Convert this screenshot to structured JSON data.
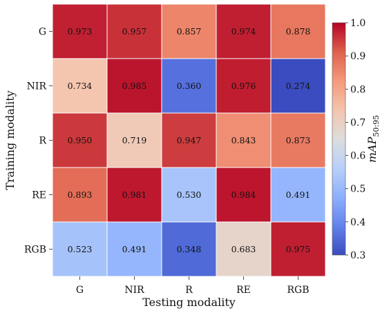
{
  "chart_data": {
    "type": "heatmap",
    "title": "",
    "xlabel": "Testing modality",
    "ylabel": "Training modality",
    "x_categories": [
      "G",
      "NIR",
      "R",
      "RE",
      "RGB"
    ],
    "y_categories": [
      "G",
      "NIR",
      "R",
      "RE",
      "RGB"
    ],
    "values": [
      [
        0.973,
        0.957,
        0.857,
        0.974,
        0.878
      ],
      [
        0.734,
        0.985,
        0.36,
        0.976,
        0.274
      ],
      [
        0.95,
        0.719,
        0.947,
        0.843,
        0.873
      ],
      [
        0.893,
        0.981,
        0.53,
        0.984,
        0.491
      ],
      [
        0.523,
        0.491,
        0.348,
        0.683,
        0.975
      ]
    ],
    "value_labels": [
      [
        "0.973",
        "0.957",
        "0.857",
        "0.974",
        "0.878"
      ],
      [
        "0.734",
        "0.985",
        "0.360",
        "0.976",
        "0.274"
      ],
      [
        "0.950",
        "0.719",
        "0.947",
        "0.843",
        "0.873"
      ],
      [
        "0.893",
        "0.981",
        "0.530",
        "0.984",
        "0.491"
      ],
      [
        "0.523",
        "0.491",
        "0.348",
        "0.683",
        "0.975"
      ]
    ],
    "colorbar": {
      "label": "mAP50:95",
      "label_main": "mAP",
      "label_sub": "50:95",
      "range": [
        0.3,
        1.0
      ],
      "ticks": [
        "0.3",
        "0.4",
        "0.5",
        "0.6",
        "0.7",
        "0.8",
        "0.9",
        "1.0"
      ],
      "colormap": "coolwarm"
    },
    "grid": true,
    "colors": {
      "low": "#3b4cc0",
      "mid": "#dddddd",
      "high": "#b40426",
      "grid_lines": "#ffffff"
    }
  }
}
